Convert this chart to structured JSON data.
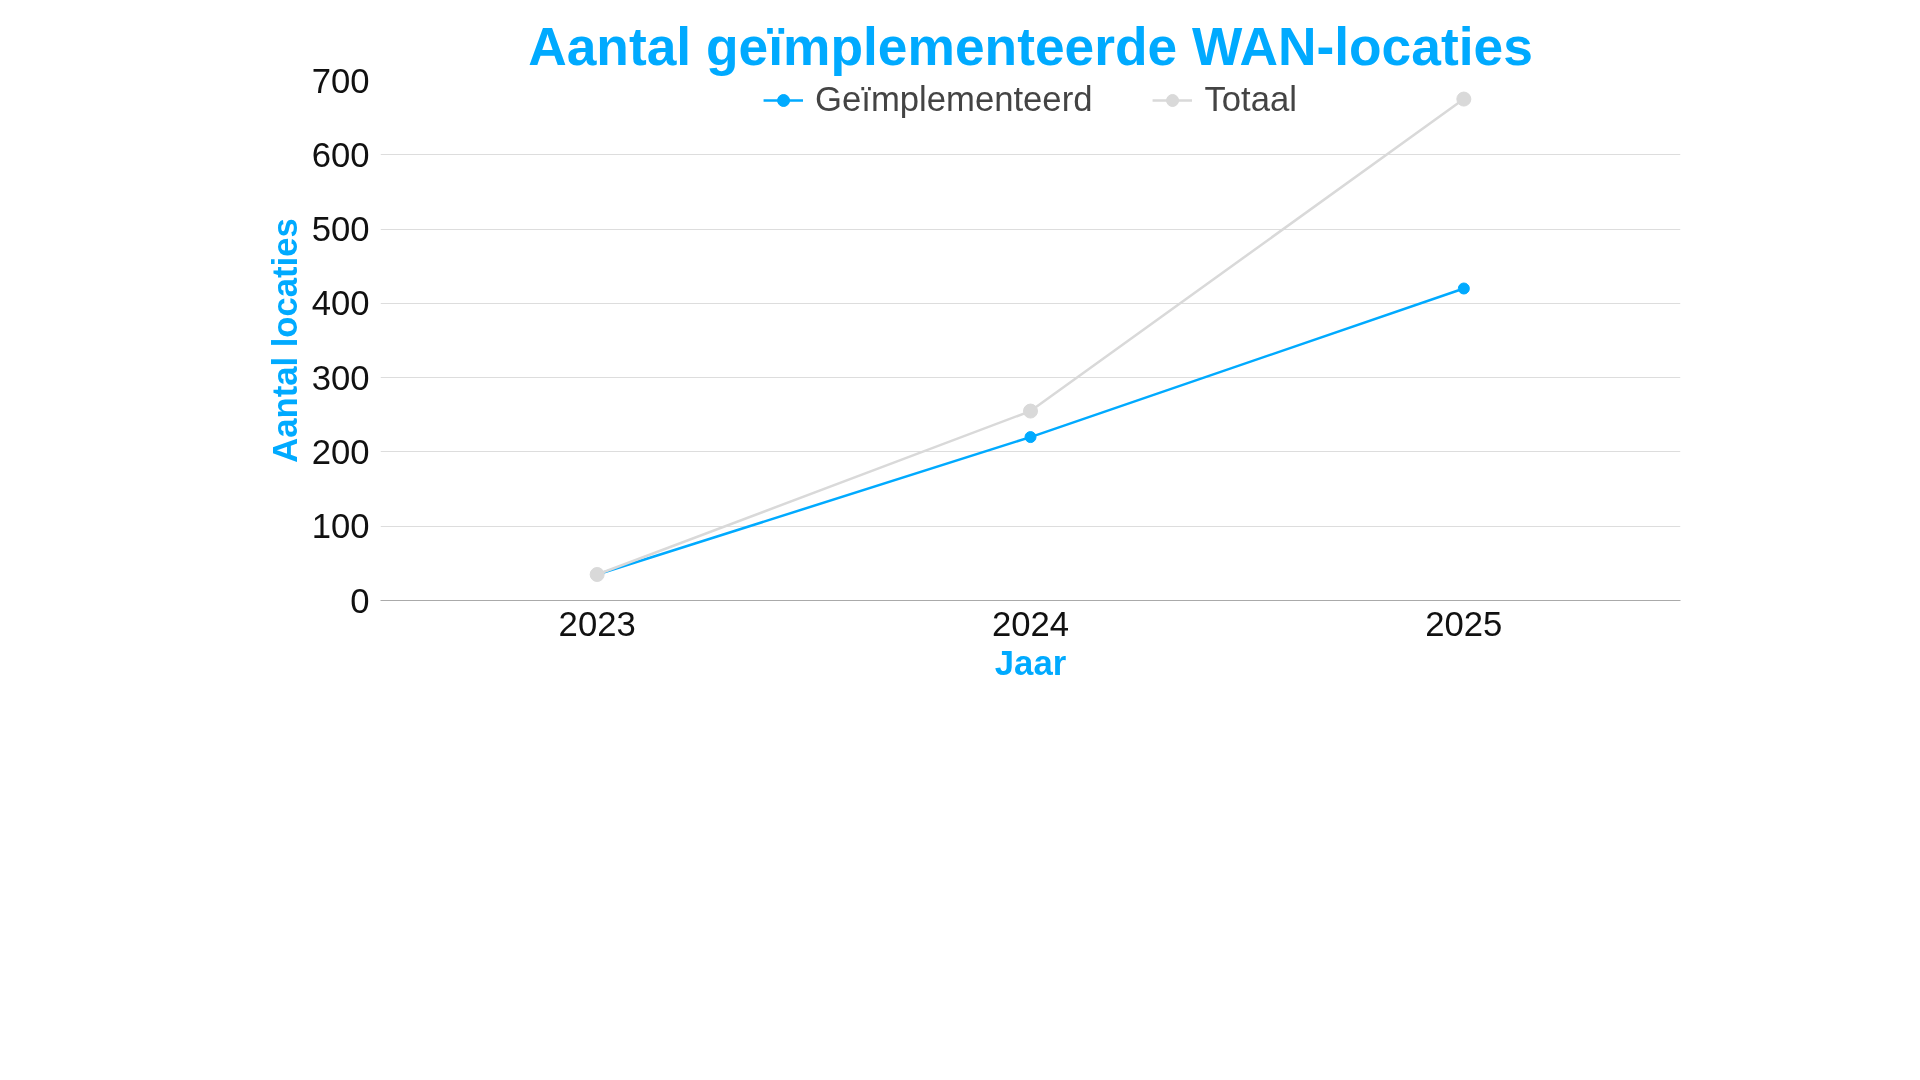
{
  "chart_data": {
    "type": "line",
    "title": "Aantal geïmplementeerde WAN-locaties",
    "xlabel": "Jaar",
    "ylabel": "Aantal locaties",
    "categories": [
      "2023",
      "2024",
      "2025"
    ],
    "series": [
      {
        "name": "Geïmplementeerd",
        "color": "#00aaff",
        "values": [
          35,
          220,
          420
        ]
      },
      {
        "name": "Totaal",
        "color": "#d9d9d9",
        "values": [
          35,
          255,
          675
        ]
      }
    ],
    "ylim": [
      0,
      700
    ],
    "yticks": [
      0,
      100,
      200,
      300,
      400,
      500,
      600,
      700
    ],
    "grid": "y",
    "legend": "top",
    "marker": "circle",
    "line_style": "solid"
  }
}
